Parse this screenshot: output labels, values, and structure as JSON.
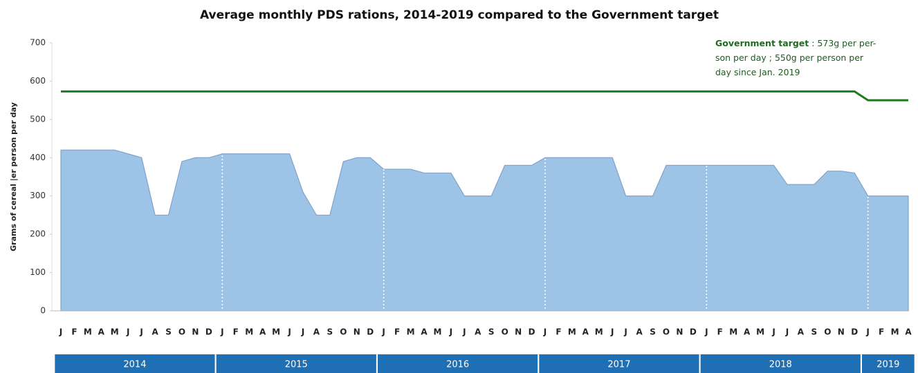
{
  "chart_data": {
    "type": "area",
    "title": "Average monthly PDS rations, 2014-2019 compared to the Government target",
    "y_label": "Grams of cereal |er person per day",
    "categories": [
      "J",
      "F",
      "M",
      "A",
      "M",
      "J",
      "J",
      "A",
      "S",
      "O",
      "N",
      "D",
      "J",
      "F",
      "M",
      "A",
      "M",
      "J",
      "J",
      "A",
      "S",
      "O",
      "N",
      "D",
      "J",
      "F",
      "M",
      "A",
      "M",
      "J",
      "J",
      "A",
      "S",
      "O",
      "N",
      "D",
      "J",
      "F",
      "M",
      "A",
      "M",
      "J",
      "J",
      "A",
      "S",
      "O",
      "N",
      "D",
      "J",
      "F",
      "M",
      "A",
      "M",
      "J",
      "J",
      "A",
      "S",
      "O",
      "N",
      "D",
      "J",
      "F",
      "M",
      "A"
    ],
    "year_groups": [
      "2014",
      "2015",
      "2016",
      "2017",
      "2018",
      "2019"
    ],
    "series": [
      {
        "name": "PDS ration",
        "color": "#9dc3e6",
        "values": [
          420,
          420,
          420,
          420,
          420,
          410,
          400,
          250,
          250,
          390,
          400,
          400,
          410,
          410,
          410,
          410,
          410,
          410,
          310,
          250,
          250,
          390,
          400,
          400,
          370,
          370,
          370,
          360,
          360,
          360,
          300,
          300,
          300,
          380,
          380,
          380,
          400,
          400,
          400,
          400,
          400,
          400,
          300,
          300,
          300,
          380,
          380,
          380,
          380,
          380,
          380,
          380,
          380,
          380,
          330,
          330,
          330,
          365,
          365,
          360,
          300,
          300,
          300,
          300
        ]
      },
      {
        "name": "Government target",
        "color": "#1e7b1e",
        "values": [
          573,
          573,
          573,
          573,
          573,
          573,
          573,
          573,
          573,
          573,
          573,
          573,
          573,
          573,
          573,
          573,
          573,
          573,
          573,
          573,
          573,
          573,
          573,
          573,
          573,
          573,
          573,
          573,
          573,
          573,
          573,
          573,
          573,
          573,
          573,
          573,
          573,
          573,
          573,
          573,
          573,
          573,
          573,
          573,
          573,
          573,
          573,
          573,
          573,
          573,
          573,
          573,
          573,
          573,
          573,
          573,
          573,
          573,
          573,
          573,
          550,
          550,
          550,
          550
        ]
      }
    ],
    "annotation": [
      "Government target",
      " : 573g per per-",
      "son per day ; 550g per person per",
      "day since Jan. 2019"
    ],
    "ylim": [
      0,
      700
    ],
    "yticks": [
      0,
      100,
      200,
      300,
      400,
      500,
      600,
      700
    ]
  }
}
